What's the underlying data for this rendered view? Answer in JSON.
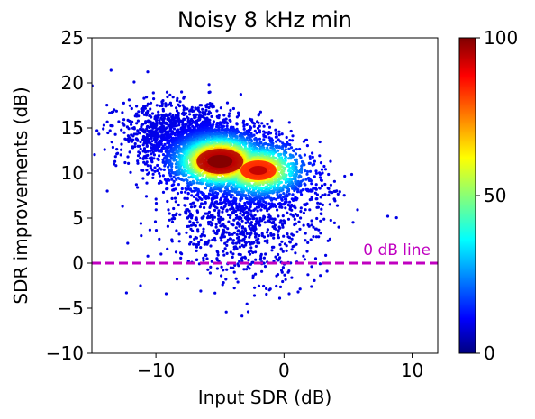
{
  "chart_data": {
    "type": "scatter",
    "title": "Noisy 8 kHz min",
    "xlabel": "Input SDR (dB)",
    "ylabel": "SDR improvements (dB)",
    "xlim": [
      -15,
      12
    ],
    "ylim": [
      -10,
      25
    ],
    "xticks": [
      -10,
      0,
      10
    ],
    "yticks": [
      -10,
      -5,
      0,
      5,
      10,
      15,
      20,
      25
    ],
    "xtick_labels": [
      "−10",
      "0",
      "10"
    ],
    "ytick_labels": [
      "−10",
      "−5",
      "0",
      "5",
      "10",
      "15",
      "20",
      "25"
    ],
    "grid": false,
    "colormap": "jet",
    "colorbar": {
      "range": [
        0,
        100
      ],
      "ticks": [
        0,
        50,
        100
      ],
      "tick_labels": [
        "0",
        "50",
        "100"
      ]
    },
    "reference_line": {
      "y": 0,
      "label": "0 dB line",
      "color": "#c000c0",
      "style": "dashed"
    },
    "density_peaks": [
      {
        "x": -5.0,
        "y": 11.3,
        "density": 100
      },
      {
        "x": -2.0,
        "y": 10.3,
        "density": 75
      }
    ],
    "points": [
      [
        -13.5,
        21.4
      ],
      [
        -11.7,
        20.1
      ],
      [
        -10.2,
        18.9
      ],
      [
        -14.6,
        14.7
      ],
      [
        -8.0,
        19.0
      ],
      [
        -13.8,
        8.0
      ],
      [
        -12.6,
        6.3
      ],
      [
        -12.2,
        2.2
      ],
      [
        -11.2,
        -2.5
      ],
      [
        -12.3,
        -3.3
      ],
      [
        -9.2,
        -3.4
      ],
      [
        -6.5,
        -3.1
      ],
      [
        -3.6,
        -2.1
      ],
      [
        -2.8,
        -5.4
      ],
      [
        0.4,
        -3.4
      ],
      [
        1.1,
        -3.2
      ],
      [
        -0.8,
        0.2
      ],
      [
        2.1,
        2.6
      ],
      [
        3.0,
        10.0
      ],
      [
        2.8,
        8.3
      ],
      [
        2.2,
        12.2
      ],
      [
        8.1,
        5.2
      ],
      [
        -7.2,
        17.0
      ],
      [
        -4.3,
        16.3
      ],
      [
        -1.6,
        14.6
      ],
      [
        1.5,
        9.2
      ],
      [
        -14.0,
        12.6
      ],
      [
        -12.9,
        15.7
      ],
      [
        -9.6,
        1.0
      ],
      [
        -6.0,
        0.5
      ],
      [
        -1.8,
        0.8
      ],
      [
        -5.2,
        -0.6
      ],
      [
        -8.4,
        3.6
      ],
      [
        -0.3,
        4.5
      ],
      [
        1.8,
        6.6
      ],
      [
        -11.0,
        9.4
      ],
      [
        -3.0,
        2.0
      ],
      [
        -4.7,
        3.4
      ],
      [
        -7.7,
        5.7
      ],
      [
        0.8,
        1.9
      ]
    ]
  }
}
